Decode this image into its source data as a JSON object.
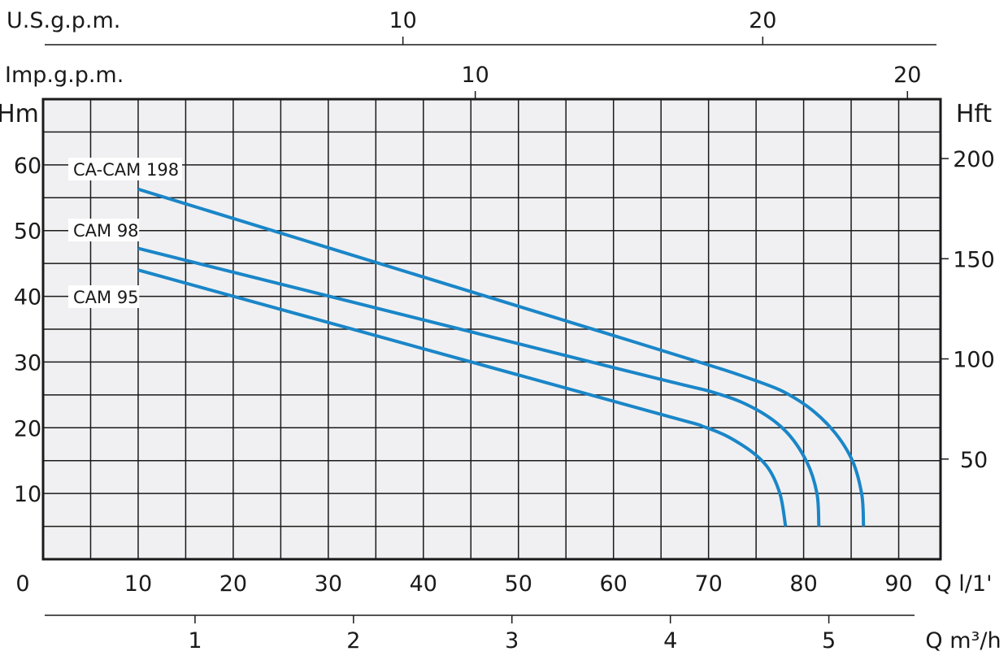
{
  "chart_data": {
    "type": "line",
    "title": "",
    "xlabel": "Q l/1'",
    "ylabel": "Hm",
    "y2label": "Hft",
    "x_secondary_top_1": {
      "label": "U.S.g.p.m.",
      "ticks": [
        10,
        20
      ]
    },
    "x_secondary_top_2": {
      "label": "Imp.g.p.m.",
      "ticks": [
        10,
        20
      ]
    },
    "x_secondary_bottom": {
      "label": "Q m³/h",
      "ticks": [
        1,
        2,
        3,
        4,
        5
      ]
    },
    "xlim": [
      0,
      94.4
    ],
    "ylim": [
      0,
      70
    ],
    "x_ticks": [
      0,
      10,
      20,
      30,
      40,
      50,
      60,
      70,
      80,
      90
    ],
    "y_ticks": [
      10,
      20,
      30,
      40,
      50,
      60
    ],
    "y2_ticks": [
      50,
      100,
      150,
      200
    ],
    "grid": true,
    "series": [
      {
        "name": "CA-CAM 198",
        "color": "#1a86c8",
        "points": [
          [
            10,
            56.3
          ],
          [
            62.1,
            33.1
          ],
          [
            74.7,
            27.3
          ],
          [
            79.2,
            24.4
          ],
          [
            82.6,
            20.4
          ],
          [
            85,
            15.4
          ],
          [
            86.1,
            10
          ],
          [
            86.3,
            5
          ]
        ]
      },
      {
        "name": "CAM 98",
        "color": "#1a86c8",
        "points": [
          [
            10,
            47.3
          ],
          [
            62.1,
            28.4
          ],
          [
            70.7,
            25.3
          ],
          [
            75,
            22.8
          ],
          [
            78.1,
            19.5
          ],
          [
            80.3,
            14.9
          ],
          [
            81.4,
            10
          ],
          [
            81.6,
            5
          ]
        ]
      },
      {
        "name": "CAM 95",
        "color": "#1a86c8",
        "points": [
          [
            10,
            44
          ],
          [
            62.1,
            23.2
          ],
          [
            69.8,
            20
          ],
          [
            73.5,
            17.4
          ],
          [
            76.1,
            14.2
          ],
          [
            77.5,
            10
          ],
          [
            78.1,
            5
          ]
        ]
      }
    ]
  }
}
